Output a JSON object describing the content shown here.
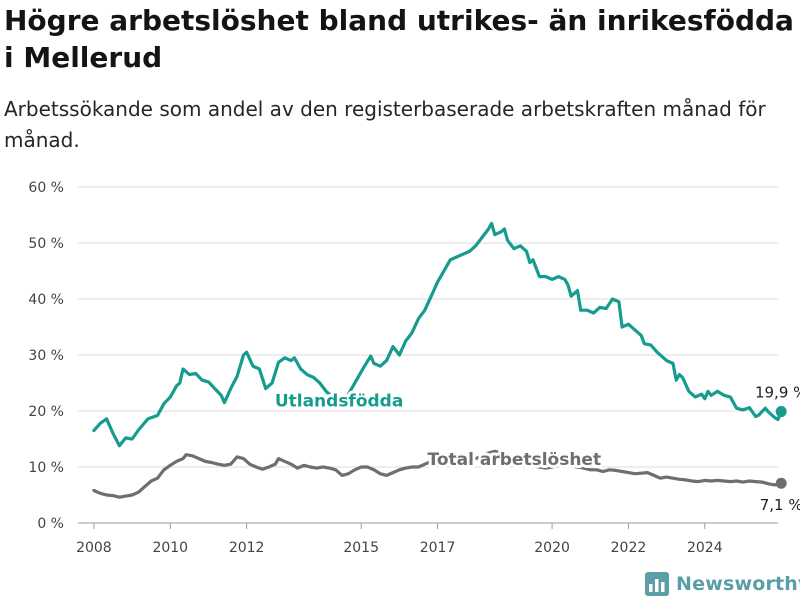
{
  "header": {
    "title": "Högre arbetslöshet bland utrikes- än inrikesfödda i Mellerud",
    "subtitle": "Arbetssökande som andel av den registerbaserade arbetskraften månad för månad."
  },
  "brand": {
    "name": "Newsworthy",
    "icon": "bar-chart-logo-icon",
    "color": "#5b9ea5"
  },
  "chart_data": {
    "type": "line",
    "title": "",
    "xlabel": "",
    "ylabel": "",
    "ylim": [
      0,
      60
    ],
    "xlim": [
      "2007-08",
      "2025-12"
    ],
    "y_ticks": [
      "0 %",
      "10 %",
      "20 %",
      "30 %",
      "40 %",
      "50 %",
      "60 %"
    ],
    "x_ticks": [
      "2008",
      "2010",
      "2012",
      "2015",
      "2017",
      "2020",
      "2022",
      "2024"
    ],
    "grid": true,
    "series": [
      {
        "name": "Utlandsfödda",
        "color": "#159c8e",
        "end_label": "19,9 %",
        "points": [
          [
            "2008-01",
            16.5
          ],
          [
            "2008-03",
            17.8
          ],
          [
            "2008-05",
            18.6
          ],
          [
            "2008-07",
            16.0
          ],
          [
            "2008-09",
            13.8
          ],
          [
            "2008-11",
            15.2
          ],
          [
            "2009-01",
            15.0
          ],
          [
            "2009-03",
            16.6
          ],
          [
            "2009-06",
            18.6
          ],
          [
            "2009-09",
            19.2
          ],
          [
            "2009-11",
            21.3
          ],
          [
            "2010-01",
            22.5
          ],
          [
            "2010-03",
            24.5
          ],
          [
            "2010-04",
            25.0
          ],
          [
            "2010-05",
            27.5
          ],
          [
            "2010-07",
            26.5
          ],
          [
            "2010-09",
            26.7
          ],
          [
            "2010-11",
            25.5
          ],
          [
            "2011-01",
            25.2
          ],
          [
            "2011-03",
            24.0
          ],
          [
            "2011-05",
            22.8
          ],
          [
            "2011-06",
            21.5
          ],
          [
            "2011-08",
            24.0
          ],
          [
            "2011-10",
            26.2
          ],
          [
            "2011-12",
            30.0
          ],
          [
            "2012-01",
            30.5
          ],
          [
            "2012-03",
            28.0
          ],
          [
            "2012-05",
            27.5
          ],
          [
            "2012-07",
            24.0
          ],
          [
            "2012-09",
            25.0
          ],
          [
            "2012-11",
            28.7
          ],
          [
            "2013-01",
            29.5
          ],
          [
            "2013-03",
            29.0
          ],
          [
            "2013-04",
            29.5
          ],
          [
            "2013-06",
            27.5
          ],
          [
            "2013-08",
            26.5
          ],
          [
            "2013-10",
            26.0
          ],
          [
            "2013-12",
            25.0
          ],
          [
            "2014-02",
            23.5
          ],
          [
            "2014-04",
            22.5
          ],
          [
            "2014-06",
            21.5
          ],
          [
            "2014-08",
            22.0
          ],
          [
            "2014-10",
            24.0
          ],
          [
            "2014-12",
            26.0
          ],
          [
            "2015-02",
            28.0
          ],
          [
            "2015-04",
            29.8
          ],
          [
            "2015-05",
            28.5
          ],
          [
            "2015-07",
            28.0
          ],
          [
            "2015-09",
            29.0
          ],
          [
            "2015-11",
            31.5
          ],
          [
            "2016-01",
            30.0
          ],
          [
            "2016-03",
            32.5
          ],
          [
            "2016-05",
            34.0
          ],
          [
            "2016-07",
            36.5
          ],
          [
            "2016-09",
            38.0
          ],
          [
            "2016-11",
            40.5
          ],
          [
            "2017-01",
            43.0
          ],
          [
            "2017-03",
            45.0
          ],
          [
            "2017-05",
            47.0
          ],
          [
            "2017-07",
            47.5
          ],
          [
            "2017-09",
            48.0
          ],
          [
            "2017-11",
            48.5
          ],
          [
            "2018-01",
            49.5
          ],
          [
            "2018-03",
            51.0
          ],
          [
            "2018-05",
            52.5
          ],
          [
            "2018-06",
            53.5
          ],
          [
            "2018-07",
            51.5
          ],
          [
            "2018-09",
            52.0
          ],
          [
            "2018-10",
            52.5
          ],
          [
            "2018-11",
            50.5
          ],
          [
            "2019-01",
            49.0
          ],
          [
            "2019-03",
            49.5
          ],
          [
            "2019-05",
            48.5
          ],
          [
            "2019-06",
            46.5
          ],
          [
            "2019-07",
            47.0
          ],
          [
            "2019-08",
            45.5
          ],
          [
            "2019-09",
            44.0
          ],
          [
            "2019-11",
            44.0
          ],
          [
            "2020-01",
            43.5
          ],
          [
            "2020-03",
            44.0
          ],
          [
            "2020-05",
            43.5
          ],
          [
            "2020-06",
            42.5
          ],
          [
            "2020-07",
            40.5
          ],
          [
            "2020-09",
            41.5
          ],
          [
            "2020-10",
            38.0
          ],
          [
            "2020-12",
            38.0
          ],
          [
            "2021-02",
            37.5
          ],
          [
            "2021-04",
            38.5
          ],
          [
            "2021-06",
            38.3
          ],
          [
            "2021-08",
            40.0
          ],
          [
            "2021-10",
            39.5
          ],
          [
            "2021-11",
            35.0
          ],
          [
            "2022-01",
            35.5
          ],
          [
            "2022-03",
            34.5
          ],
          [
            "2022-05",
            33.5
          ],
          [
            "2022-06",
            32.0
          ],
          [
            "2022-08",
            31.8
          ],
          [
            "2022-10",
            30.5
          ],
          [
            "2023-01",
            29.0
          ],
          [
            "2023-03",
            28.5
          ],
          [
            "2023-04",
            25.5
          ],
          [
            "2023-05",
            26.5
          ],
          [
            "2023-06",
            26.0
          ],
          [
            "2023-08",
            23.5
          ],
          [
            "2023-10",
            22.5
          ],
          [
            "2023-12",
            23.0
          ],
          [
            "2024-01",
            22.2
          ],
          [
            "2024-02",
            23.5
          ],
          [
            "2024-03",
            22.8
          ],
          [
            "2024-05",
            23.5
          ],
          [
            "2024-07",
            22.8
          ],
          [
            "2024-09",
            22.5
          ],
          [
            "2024-11",
            20.5
          ],
          [
            "2025-01",
            20.2
          ],
          [
            "2025-03",
            20.6
          ],
          [
            "2025-05",
            19.0
          ],
          [
            "2025-06",
            19.3
          ],
          [
            "2025-08",
            20.5
          ],
          [
            "2025-09",
            19.8
          ],
          [
            "2025-11",
            18.8
          ],
          [
            "2025-12",
            18.5
          ],
          [
            "2026-01",
            19.9
          ]
        ]
      },
      {
        "name": "Total arbetslöshet",
        "color": "#6e6d72",
        "end_label": "7,1 %",
        "points": [
          [
            "2008-01",
            5.8
          ],
          [
            "2008-03",
            5.3
          ],
          [
            "2008-05",
            5.0
          ],
          [
            "2008-07",
            4.9
          ],
          [
            "2008-09",
            4.6
          ],
          [
            "2008-11",
            4.8
          ],
          [
            "2009-01",
            5.0
          ],
          [
            "2009-03",
            5.5
          ],
          [
            "2009-05",
            6.5
          ],
          [
            "2009-07",
            7.5
          ],
          [
            "2009-09",
            8.0
          ],
          [
            "2009-11",
            9.5
          ],
          [
            "2010-01",
            10.3
          ],
          [
            "2010-03",
            11.0
          ],
          [
            "2010-05",
            11.5
          ],
          [
            "2010-06",
            12.2
          ],
          [
            "2010-08",
            12.0
          ],
          [
            "2010-10",
            11.5
          ],
          [
            "2010-12",
            11.0
          ],
          [
            "2011-02",
            10.8
          ],
          [
            "2011-04",
            10.5
          ],
          [
            "2011-06",
            10.3
          ],
          [
            "2011-08",
            10.5
          ],
          [
            "2011-10",
            11.8
          ],
          [
            "2011-12",
            11.5
          ],
          [
            "2012-02",
            10.5
          ],
          [
            "2012-04",
            10.0
          ],
          [
            "2012-06",
            9.6
          ],
          [
            "2012-08",
            10.0
          ],
          [
            "2012-10",
            10.5
          ],
          [
            "2012-11",
            11.5
          ],
          [
            "2013-01",
            11.0
          ],
          [
            "2013-03",
            10.5
          ],
          [
            "2013-05",
            9.8
          ],
          [
            "2013-07",
            10.3
          ],
          [
            "2013-09",
            10.0
          ],
          [
            "2013-11",
            9.8
          ],
          [
            "2014-01",
            10.0
          ],
          [
            "2014-03",
            9.8
          ],
          [
            "2014-05",
            9.5
          ],
          [
            "2014-07",
            8.5
          ],
          [
            "2014-09",
            8.8
          ],
          [
            "2014-11",
            9.5
          ],
          [
            "2015-01",
            10.0
          ],
          [
            "2015-03",
            10.0
          ],
          [
            "2015-05",
            9.5
          ],
          [
            "2015-07",
            8.8
          ],
          [
            "2015-09",
            8.5
          ],
          [
            "2015-11",
            9.0
          ],
          [
            "2016-01",
            9.5
          ],
          [
            "2016-03",
            9.8
          ],
          [
            "2016-05",
            10.0
          ],
          [
            "2016-07",
            10.0
          ],
          [
            "2016-09",
            10.5
          ],
          [
            "2016-11",
            11.0
          ],
          [
            "2017-01",
            11.5
          ],
          [
            "2017-03",
            11.8
          ],
          [
            "2017-05",
            12.3
          ],
          [
            "2017-07",
            12.0
          ],
          [
            "2017-09",
            11.5
          ],
          [
            "2017-11",
            11.2
          ],
          [
            "2018-01",
            11.5
          ],
          [
            "2018-03",
            12.0
          ],
          [
            "2018-05",
            12.5
          ],
          [
            "2018-07",
            12.8
          ],
          [
            "2018-09",
            12.5
          ],
          [
            "2018-11",
            12.0
          ],
          [
            "2019-01",
            11.5
          ],
          [
            "2019-03",
            11.0
          ],
          [
            "2019-05",
            10.5
          ],
          [
            "2019-07",
            10.2
          ],
          [
            "2019-09",
            10.0
          ],
          [
            "2019-11",
            9.8
          ],
          [
            "2020-01",
            10.0
          ],
          [
            "2020-03",
            10.3
          ],
          [
            "2020-05",
            10.5
          ],
          [
            "2020-07",
            10.2
          ],
          [
            "2020-09",
            10.0
          ],
          [
            "2020-11",
            9.8
          ],
          [
            "2021-01",
            9.5
          ],
          [
            "2021-03",
            9.5
          ],
          [
            "2021-05",
            9.2
          ],
          [
            "2021-07",
            9.5
          ],
          [
            "2021-09",
            9.4
          ],
          [
            "2021-11",
            9.2
          ],
          [
            "2022-01",
            9.0
          ],
          [
            "2022-03",
            8.8
          ],
          [
            "2022-05",
            8.9
          ],
          [
            "2022-07",
            9.0
          ],
          [
            "2022-09",
            8.5
          ],
          [
            "2022-11",
            8.0
          ],
          [
            "2023-01",
            8.2
          ],
          [
            "2023-03",
            8.0
          ],
          [
            "2023-05",
            7.8
          ],
          [
            "2023-07",
            7.7
          ],
          [
            "2023-09",
            7.5
          ],
          [
            "2023-11",
            7.4
          ],
          [
            "2024-01",
            7.6
          ],
          [
            "2024-03",
            7.5
          ],
          [
            "2024-05",
            7.6
          ],
          [
            "2024-07",
            7.5
          ],
          [
            "2024-09",
            7.4
          ],
          [
            "2024-11",
            7.5
          ],
          [
            "2025-01",
            7.3
          ],
          [
            "2025-03",
            7.5
          ],
          [
            "2025-05",
            7.4
          ],
          [
            "2025-07",
            7.3
          ],
          [
            "2025-09",
            7.0
          ],
          [
            "2025-11",
            6.8
          ],
          [
            "2026-01",
            7.1
          ]
        ]
      }
    ]
  }
}
